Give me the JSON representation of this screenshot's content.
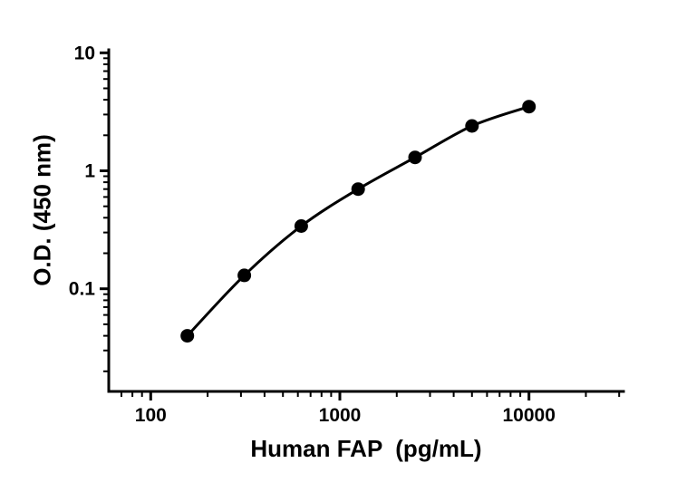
{
  "figure": {
    "background": "#ffffff"
  },
  "chart_data": {
    "type": "line",
    "title": "",
    "xlabel": "Human FAP  (pg/mL)",
    "ylabel": "O.D. (450 nm)",
    "x_scale": "log",
    "y_scale": "log",
    "x": [
      156.25,
      312.5,
      625,
      1250,
      2500,
      5000,
      10000
    ],
    "y": [
      0.04,
      0.13,
      0.34,
      0.7,
      1.3,
      2.4,
      3.5
    ],
    "x_ticks": [
      100,
      1000,
      10000
    ],
    "x_tick_labels": [
      "100",
      "1000",
      "10000"
    ],
    "y_ticks": [
      0.1,
      1,
      10
    ],
    "y_tick_labels": [
      "0.1",
      "1",
      "10"
    ],
    "xlim": [
      60,
      31623
    ],
    "ylim": [
      0.0135,
      10.6
    ],
    "grid": false,
    "legend": "none",
    "line_color": "#000000",
    "marker_color": "#000000",
    "marker_size": 7.5
  }
}
